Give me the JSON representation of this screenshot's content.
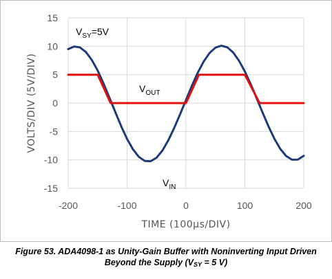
{
  "chart_data": {
    "type": "line",
    "title": "",
    "xlabel": "TIME (100µs/DIV)",
    "ylabel": "VOLTS/DIV (5V/DIV)",
    "xlim": [
      -200,
      200
    ],
    "ylim": [
      -15,
      15
    ],
    "x_ticks": [
      "-200",
      "-100",
      "0",
      "100",
      "200"
    ],
    "y_ticks": [
      "15",
      "10",
      "5",
      "0",
      "-5",
      "-10",
      "-15"
    ],
    "grid": true,
    "annotations": {
      "vsy": {
        "main": "V",
        "sub": "SY",
        "rest": "=5V"
      },
      "vout": {
        "main": "V",
        "sub": "OUT"
      },
      "vin": {
        "main": "V",
        "sub": "IN"
      }
    },
    "series": [
      {
        "name": "VIN",
        "color": "#1f3a7a",
        "x": [
          -200,
          -190,
          -180,
          -170,
          -160,
          -150,
          -140,
          -130,
          -120,
          -110,
          -100,
          -90,
          -80,
          -70,
          -60,
          -50,
          -40,
          -30,
          -20,
          -10,
          0,
          10,
          20,
          30,
          40,
          50,
          60,
          70,
          80,
          90,
          100,
          110,
          120,
          130,
          140,
          150,
          160,
          170,
          180,
          190,
          200
        ],
        "values": [
          9.5,
          9.95,
          9.8,
          8.99,
          7.61,
          5.73,
          3.45,
          0.97,
          -1.57,
          -4.06,
          -6.31,
          -8.15,
          -9.47,
          -10.18,
          -10.23,
          -9.62,
          -8.36,
          -6.57,
          -4.38,
          -1.98,
          0.55,
          3.06,
          5.35,
          7.3,
          8.81,
          9.76,
          10.1,
          9.82,
          8.91,
          7.48,
          5.57,
          3.32,
          0.86,
          -1.64,
          -4.07,
          -6.25,
          -8.04,
          -9.31,
          -9.97,
          -9.96,
          -9.28
        ]
      },
      {
        "name": "VOUT",
        "color": "#e01010",
        "x": [
          -200,
          -150,
          -128,
          0,
          22,
          100,
          125,
          200
        ],
        "values": [
          5,
          5,
          0,
          0,
          5,
          5,
          0,
          0
        ]
      }
    ]
  },
  "caption": {
    "line1": "Figure 53. ADA4098-1 as Unity-Gain Buffer with Noninverting Input Driven",
    "line2_pre": "Beyond the Supply (V",
    "line2_sub": "SY",
    "line2_post": " = 5 V)"
  }
}
